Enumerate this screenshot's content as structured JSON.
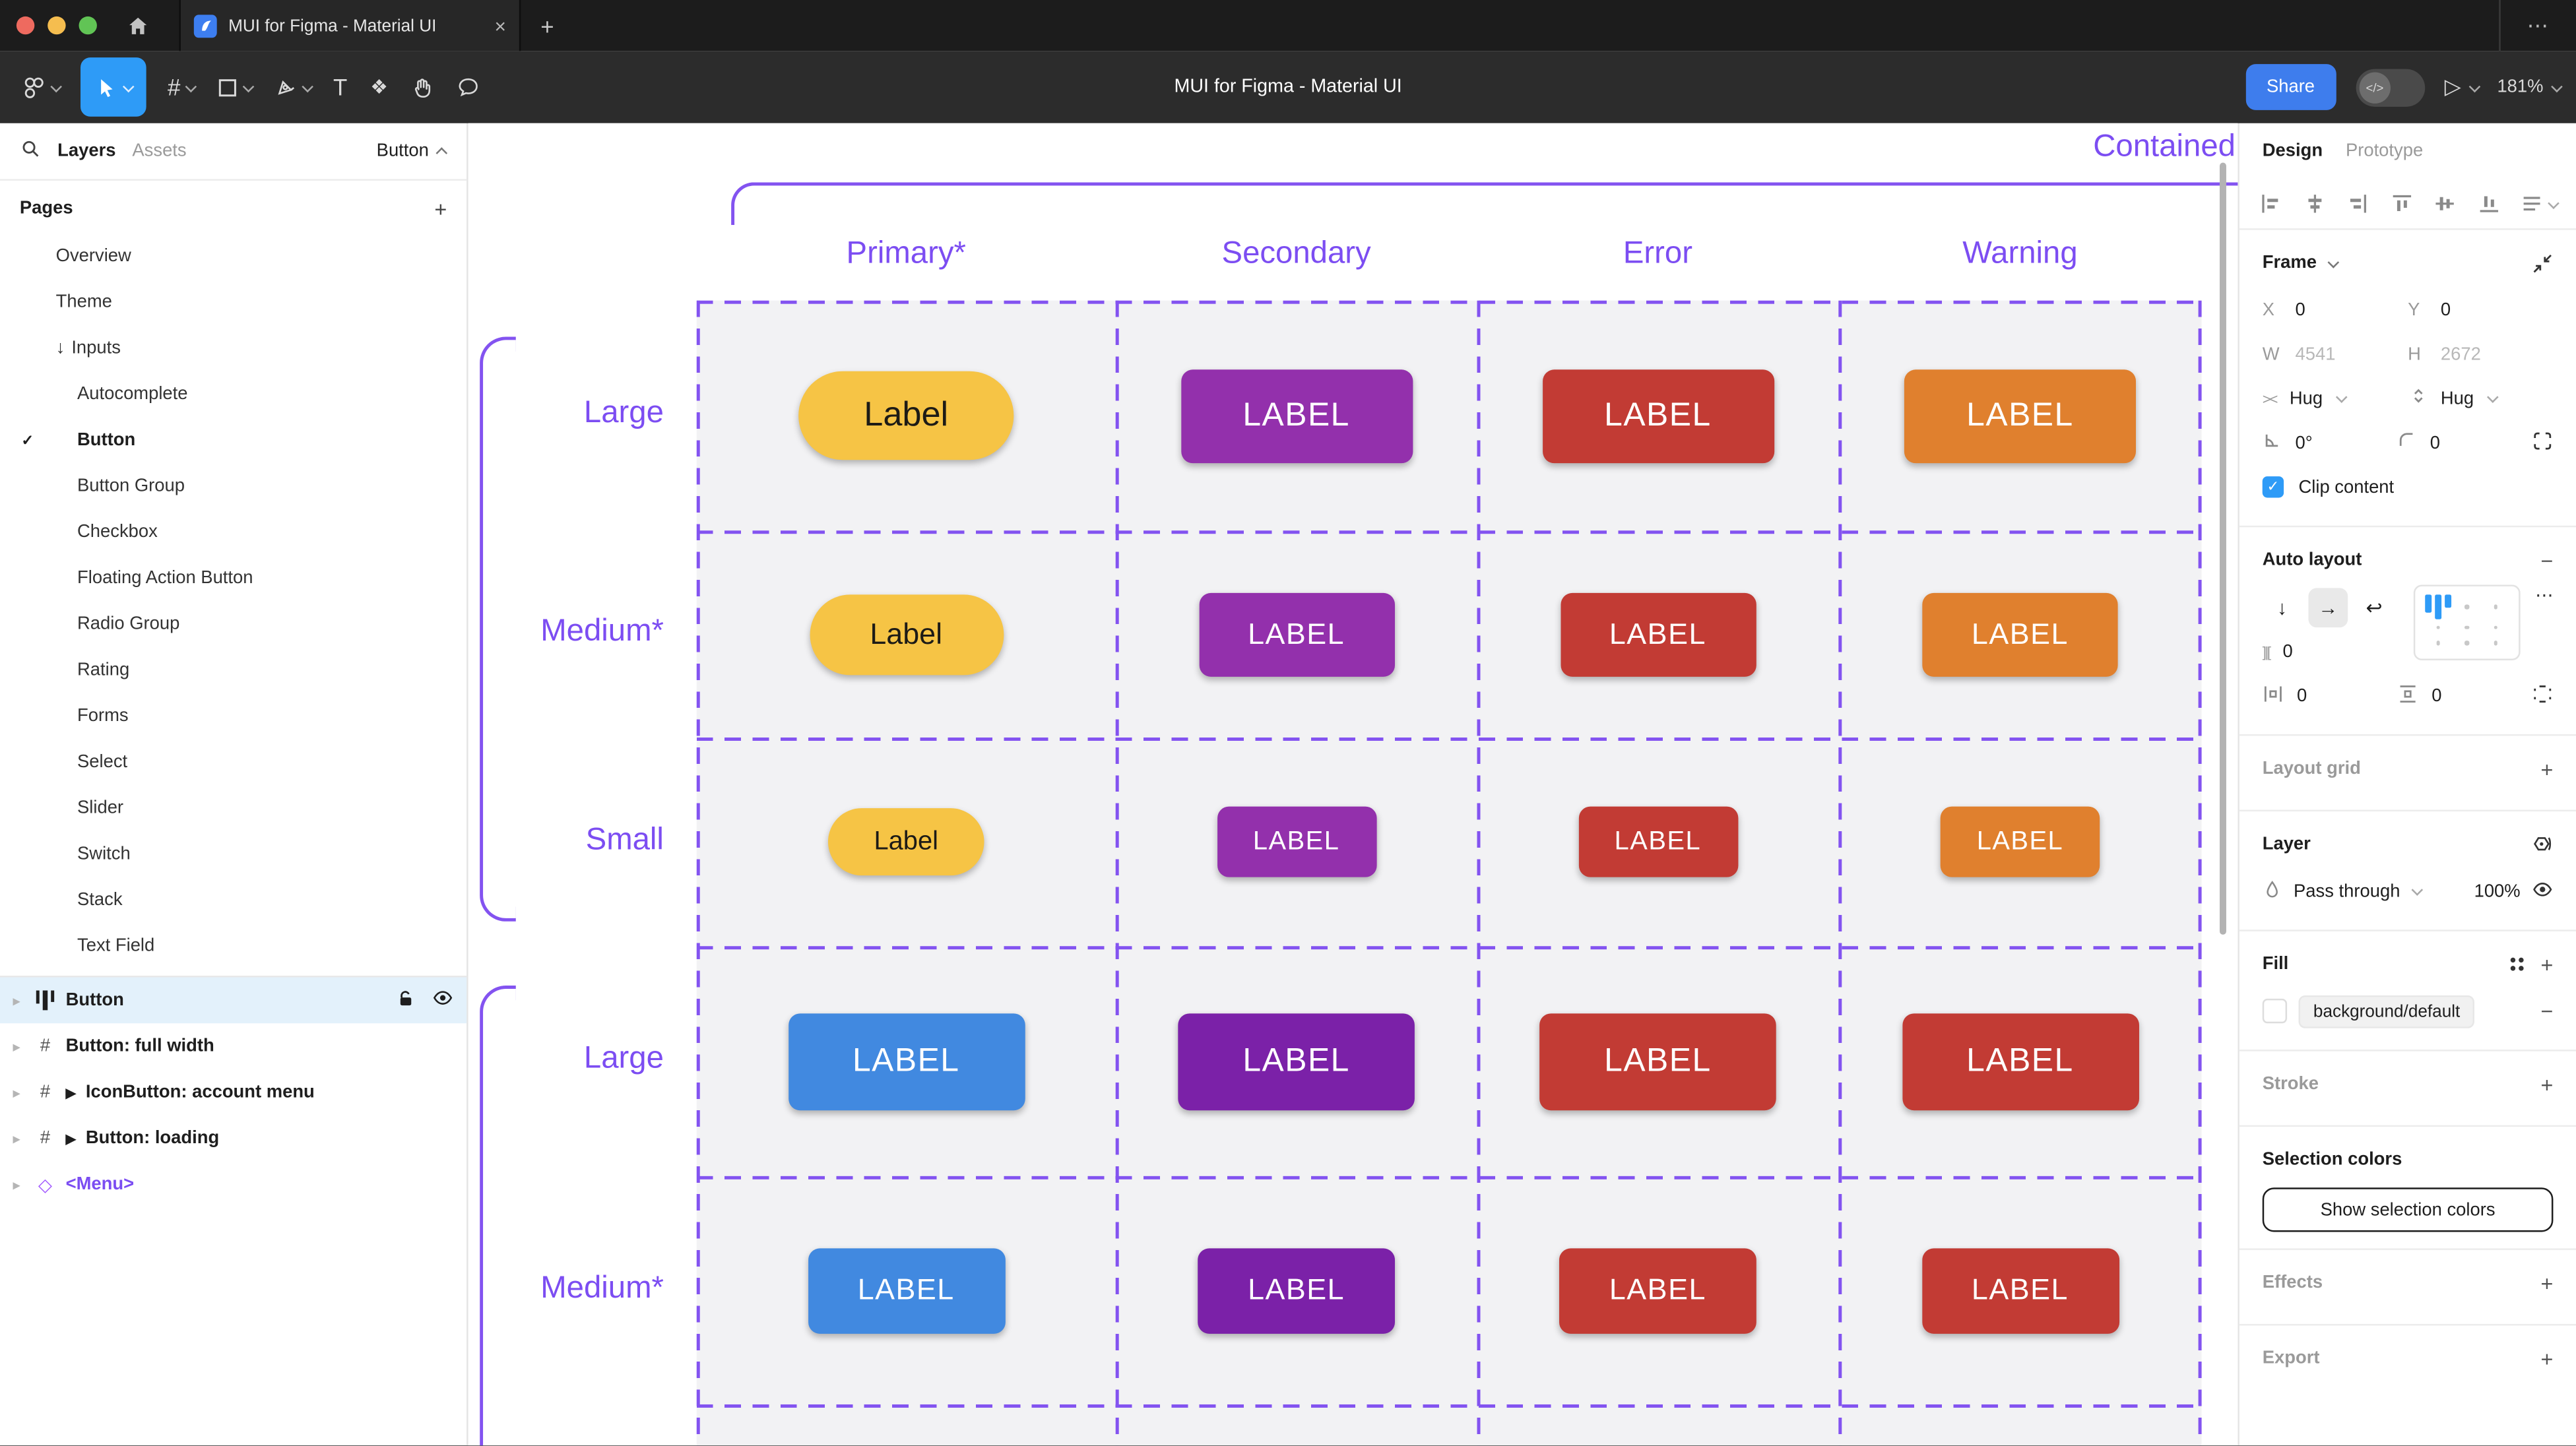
{
  "colors": {
    "accent_purple": "#7C4DF2",
    "dash_purple": "#8353F0",
    "figma_blue": "#2E9BF7",
    "share_blue": "#3E7DED",
    "selected_row_bg": "#E3F1FB",
    "grid_bg": "#F2F2F4"
  },
  "icons": {
    "close": "×",
    "add": "+",
    "more": "⋯",
    "check": "✓",
    "tri": "▸",
    "text_tool": "T",
    "frame_tool": "#",
    "actions_tool": "❖",
    "arrow_down": "↓",
    "arrow_right": "→",
    "wrap": "↩",
    "play_solid": "▶",
    "play_outline": "▷",
    "diamond": "◇",
    "resize_h": "><",
    "gap": "]|[",
    "minus": "−",
    "plus": "+"
  },
  "browser": {
    "tab_title": "MUI for Figma - Material UI"
  },
  "toolbar": {
    "doc_title": "MUI for Figma - Material UI",
    "share_label": "Share",
    "dev_toggle_glyph": "</>",
    "zoom_level": "181%"
  },
  "sidebar": {
    "tabs": {
      "layers": "Layers",
      "assets": "Assets"
    },
    "selector": "Button",
    "pages_header": "Pages",
    "pages": [
      {
        "label": "Overview"
      },
      {
        "label": "Theme"
      },
      {
        "label": "Inputs",
        "prefix": "↓"
      },
      {
        "label": "Autocomplete",
        "indent": true
      },
      {
        "label": "Button",
        "indent": true,
        "active": true,
        "checked": true
      },
      {
        "label": "Button Group",
        "indent": true
      },
      {
        "label": "Checkbox",
        "indent": true
      },
      {
        "label": "Floating Action Button",
        "indent": true
      },
      {
        "label": "Radio Group",
        "indent": true
      },
      {
        "label": "Rating",
        "indent": true
      },
      {
        "label": "Forms",
        "indent": true
      },
      {
        "label": "Select",
        "indent": true
      },
      {
        "label": "Slider",
        "indent": true
      },
      {
        "label": "Switch",
        "indent": true
      },
      {
        "label": "Stack",
        "indent": true
      },
      {
        "label": "Text Field",
        "indent": true
      }
    ],
    "layers": [
      {
        "name": "Button",
        "icon": "auto-layout",
        "selected": true
      },
      {
        "name": "Button: full width",
        "icon": "frame"
      },
      {
        "name": "IconButton: account menu",
        "icon": "frame",
        "play": true
      },
      {
        "name": "Button: loading",
        "icon": "frame",
        "play": true
      },
      {
        "name": "<Menu>",
        "icon": "component",
        "purple": true
      }
    ]
  },
  "canvas": {
    "section_title": "Contained",
    "columns": [
      "Primary*",
      "Secondary",
      "Error",
      "Warning"
    ],
    "rows": [
      {
        "label": "Large",
        "buttons": [
          {
            "text": "Label",
            "bg": "#F6C445",
            "fg": "#1D1B16",
            "pill": true
          },
          {
            "text": "LABEL",
            "bg": "#9330AC",
            "fg": "#FFFFFF"
          },
          {
            "text": "LABEL",
            "bg": "#C23B34",
            "fg": "#FFFFFF"
          },
          {
            "text": "LABEL",
            "bg": "#E0802E",
            "fg": "#FFFFFF"
          }
        ]
      },
      {
        "label": "Medium*",
        "buttons": [
          {
            "text": "Label",
            "bg": "#F6C445",
            "fg": "#1D1B16",
            "pill": true
          },
          {
            "text": "LABEL",
            "bg": "#9330AC",
            "fg": "#FFFFFF"
          },
          {
            "text": "LABEL",
            "bg": "#C23B34",
            "fg": "#FFFFFF"
          },
          {
            "text": "LABEL",
            "bg": "#E0802E",
            "fg": "#FFFFFF"
          }
        ]
      },
      {
        "label": "Small",
        "buttons": [
          {
            "text": "Label",
            "bg": "#F6C445",
            "fg": "#1D1B16",
            "pill": true
          },
          {
            "text": "LABEL",
            "bg": "#9330AC",
            "fg": "#FFFFFF"
          },
          {
            "text": "LABEL",
            "bg": "#C23B34",
            "fg": "#FFFFFF"
          },
          {
            "text": "LABEL",
            "bg": "#E0802E",
            "fg": "#FFFFFF"
          }
        ]
      },
      {
        "label": "Large",
        "buttons": [
          {
            "text": "LABEL",
            "bg": "#4189E0",
            "fg": "#FFFFFF"
          },
          {
            "text": "LABEL",
            "bg": "#7B21A8",
            "fg": "#FFFFFF"
          },
          {
            "text": "LABEL",
            "bg": "#C23B34",
            "fg": "#FFFFFF"
          },
          {
            "text": "LABEL",
            "bg": "#C23B34",
            "fg": "#FFFFFF"
          }
        ]
      },
      {
        "label": "Medium*",
        "buttons": [
          {
            "text": "LABEL",
            "bg": "#4189E0",
            "fg": "#FFFFFF"
          },
          {
            "text": "LABEL",
            "bg": "#7B21A8",
            "fg": "#FFFFFF"
          },
          {
            "text": "LABEL",
            "bg": "#C23B34",
            "fg": "#FFFFFF"
          },
          {
            "text": "LABEL",
            "bg": "#C23B34",
            "fg": "#FFFFFF"
          }
        ]
      }
    ]
  },
  "inspector": {
    "tabs": {
      "design": "Design",
      "prototype": "Prototype"
    },
    "frame": {
      "title": "Frame",
      "x_label": "X",
      "x": "0",
      "y_label": "Y",
      "y": "0",
      "w_label": "W",
      "w": "4541",
      "h_label": "H",
      "h": "2672",
      "hug_h": "Hug",
      "hug_v": "Hug",
      "angle": "0°",
      "radius": "0",
      "clip_label": "Clip content"
    },
    "auto_layout": {
      "title": "Auto layout",
      "gap": "0",
      "pad_h": "0",
      "pad_v": "0"
    },
    "layout_grid": {
      "title": "Layout grid"
    },
    "layer": {
      "title": "Layer",
      "blend": "Pass through",
      "opacity": "100%"
    },
    "fill": {
      "title": "Fill",
      "token": "background/default"
    },
    "stroke": {
      "title": "Stroke"
    },
    "selection_colors": {
      "title": "Selection colors",
      "button": "Show selection colors"
    },
    "effects": {
      "title": "Effects"
    },
    "export": {
      "title": "Export"
    }
  }
}
